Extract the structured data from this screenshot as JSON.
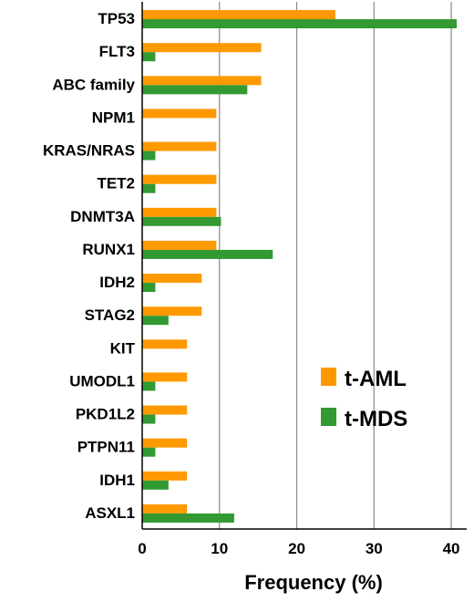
{
  "chart_data": {
    "type": "bar",
    "orientation": "horizontal",
    "categories": [
      "TP53",
      "FLT3",
      "ABC family",
      "NPM1",
      "KRAS/NRAS",
      "TET2",
      "DNMT3A",
      "RUNX1",
      "IDH2",
      "STAG2",
      "KIT",
      "UMODL1",
      "PKD1L2",
      "PTPN11",
      "IDH1",
      "ASXL1"
    ],
    "series": [
      {
        "name": "t-AML",
        "color": "#FF9900",
        "values": [
          25.0,
          15.4,
          15.4,
          9.6,
          9.6,
          9.6,
          9.6,
          9.6,
          7.7,
          7.7,
          5.8,
          5.8,
          5.8,
          5.8,
          5.8,
          5.8
        ]
      },
      {
        "name": "t-MDS",
        "color": "#339933",
        "values": [
          40.7,
          1.7,
          13.6,
          0,
          1.7,
          1.7,
          10.2,
          16.9,
          1.7,
          3.4,
          0,
          1.7,
          1.7,
          1.7,
          3.4,
          11.9
        ]
      }
    ],
    "xlabel": "Frequency (%)",
    "xlim": [
      0,
      42
    ],
    "xticks": [
      "0",
      "10",
      "20",
      "30",
      "40"
    ],
    "grid": "vertical",
    "legend": "right"
  }
}
